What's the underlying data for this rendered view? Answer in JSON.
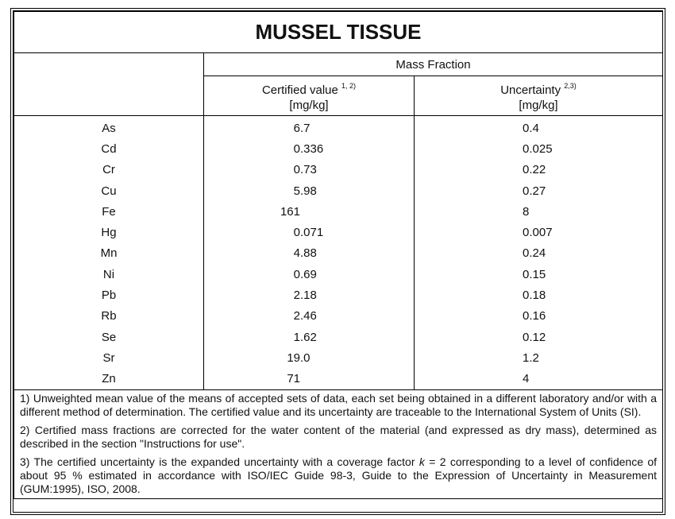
{
  "title": "MUSSEL TISSUE",
  "header": {
    "group": "Mass Fraction",
    "columns": [
      {
        "label": "Certified value",
        "note": "1, 2)",
        "unit": "[mg/kg]"
      },
      {
        "label": "Uncertainty",
        "note": "2,3)",
        "unit": "[mg/kg]"
      }
    ]
  },
  "table": {
    "rows": [
      [
        "As",
        "6.7",
        "0.4"
      ],
      [
        "Cd",
        "0.336",
        "0.025"
      ],
      [
        "Cr",
        "0.73",
        "0.22"
      ],
      [
        "Cu",
        "5.98",
        "0.27"
      ],
      [
        "Fe",
        "161",
        "8"
      ],
      [
        "Hg",
        "0.071",
        "0.007"
      ],
      [
        "Mn",
        "4.88",
        "0.24"
      ],
      [
        "Ni",
        "0.69",
        "0.15"
      ],
      [
        "Pb",
        "2.18",
        "0.18"
      ],
      [
        "Rb",
        "2.46",
        "0.16"
      ],
      [
        "Se",
        "1.62",
        "0.12"
      ],
      [
        "Sr",
        "19.0",
        "1.2"
      ],
      [
        "Zn",
        "71",
        "4"
      ]
    ]
  },
  "footnotes": [
    [
      "1) Unweighted mean value of the means of accepted sets of data, each set being obtained in a different laboratory and/or with a different method of determination. The certified value and its uncertainty are traceable to the International System of Units (SI)."
    ],
    [
      "2) Certified mass fractions are corrected for the water content of the material (and expressed as dry mass), determined as described in the section \"Instructions for use\"."
    ],
    [
      "3) The certified uncertainty is the expanded uncertainty with a coverage factor ",
      "k",
      " = 2 corresponding to a level of confidence of about 95 % estimated in accordance with ISO/IEC Guide 98-3, Guide to the Expression of Uncertainty in Measurement (GUM:1995), ISO, 2008."
    ]
  ]
}
